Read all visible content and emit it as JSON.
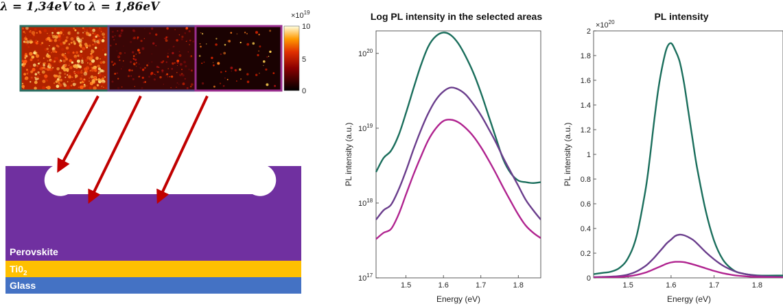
{
  "figure": {
    "heading_prefix": "λ = 1,34eV",
    "heading_mid": " to ",
    "heading_suffix": "λ = 1,86eV",
    "colorbar": {
      "exponent_label": "×10",
      "exponent_power": "19",
      "ticks": [
        "10",
        "5",
        "0"
      ],
      "range": [
        0,
        10
      ]
    },
    "maps": [
      {
        "region": "left",
        "border": "#2a6e62",
        "brightness": "high"
      },
      {
        "region": "middle",
        "border": "#5a4a8a",
        "brightness": "medium"
      },
      {
        "region": "right",
        "border": "#9a2f8f",
        "brightness": "low"
      }
    ],
    "layers": [
      {
        "label": "Perovskite",
        "color": "#7030a0"
      },
      {
        "label": "Ti0",
        "subscript": "2",
        "color": "#ffc000"
      },
      {
        "label": "Glass",
        "color": "#4472c4"
      }
    ],
    "arrow_color": "#c00000"
  },
  "chart_data": [
    {
      "type": "line",
      "title": "Log PL intensity in the selected areas",
      "xlabel": "Energy (eV)",
      "ylabel": "PL intensity (a.u.)",
      "yscale": "log",
      "xlim": [
        1.42,
        1.86
      ],
      "ylim": [
        1e+17,
        2e+20
      ],
      "xticks": [
        "1.5",
        "1.6",
        "1.7",
        "1.8"
      ],
      "yticks": [
        {
          "base": "10",
          "exp": "17",
          "value": 1e+17
        },
        {
          "base": "10",
          "exp": "18",
          "value": 1e+18
        },
        {
          "base": "10",
          "exp": "19",
          "value": 1e+19
        },
        {
          "base": "10",
          "exp": "20",
          "value": 1e+20
        }
      ],
      "x": [
        1.42,
        1.44,
        1.46,
        1.48,
        1.5,
        1.52,
        1.54,
        1.56,
        1.58,
        1.6,
        1.62,
        1.64,
        1.66,
        1.68,
        1.7,
        1.72,
        1.74,
        1.76,
        1.78,
        1.8,
        1.82,
        1.84,
        1.86
      ],
      "series": [
        {
          "color": "#1a6e5c",
          "values": [
            2.6e+18,
            4e+18,
            5e+18,
            8e+18,
            1.6e+19,
            3.4e+19,
            7e+19,
            1.25e+20,
            1.7e+20,
            1.9e+20,
            1.75e+20,
            1.35e+20,
            9e+19,
            5.5e+19,
            3e+19,
            1.5e+19,
            7.5e+18,
            3.8e+18,
            2.5e+18,
            2e+18,
            1.9e+18,
            1.85e+18,
            1.9e+18
          ]
        },
        {
          "color": "#6a3d8c",
          "values": [
            6e+17,
            8e+17,
            9.5e+17,
            1.5e+18,
            2.7e+18,
            5.2e+18,
            9.5e+18,
            1.6e+19,
            2.4e+19,
            3.1e+19,
            3.5e+19,
            3.3e+19,
            2.8e+19,
            2.1e+19,
            1.5e+19,
            1e+19,
            6.5e+18,
            4e+18,
            2.6e+18,
            1.7e+18,
            1.1e+18,
            8e+17,
            6e+17
          ]
        },
        {
          "color": "#b0238f",
          "values": [
            3.3e+17,
            4e+17,
            4.5e+17,
            7e+17,
            1.3e+18,
            2.4e+18,
            4.2e+18,
            7e+18,
            1e+19,
            1.25e+19,
            1.3e+19,
            1.2e+19,
            1e+19,
            7.8e+18,
            5.6e+18,
            3.8e+18,
            2.5e+18,
            1.6e+18,
            1.05e+18,
            7e+17,
            5e+17,
            4e+17,
            3.4e+17
          ]
        }
      ]
    },
    {
      "type": "line",
      "title": "PL intensity",
      "xlabel": "Energy (eV)",
      "ylabel": "PL intensity (a.u.)",
      "yscale": "linear",
      "y_multiplier": {
        "base": "×10",
        "exp": "20"
      },
      "xlim": [
        1.42,
        1.86
      ],
      "ylim": [
        0,
        2
      ],
      "xticks": [
        "1.5",
        "1.6",
        "1.7",
        "1.8"
      ],
      "yticks": [
        "0",
        "0.2",
        "0.4",
        "0.6",
        "0.8",
        "1",
        "1.2",
        "1.4",
        "1.6",
        "1.8",
        "2"
      ],
      "x": [
        1.42,
        1.44,
        1.46,
        1.48,
        1.5,
        1.52,
        1.54,
        1.55,
        1.56,
        1.57,
        1.58,
        1.59,
        1.6,
        1.61,
        1.62,
        1.63,
        1.64,
        1.65,
        1.66,
        1.68,
        1.7,
        1.72,
        1.74,
        1.76,
        1.8,
        1.86
      ],
      "series": [
        {
          "color": "#1a6e5c",
          "values": [
            0.03,
            0.04,
            0.05,
            0.08,
            0.16,
            0.34,
            0.7,
            0.95,
            1.25,
            1.52,
            1.72,
            1.86,
            1.9,
            1.84,
            1.75,
            1.58,
            1.35,
            1.12,
            0.9,
            0.55,
            0.3,
            0.15,
            0.075,
            0.04,
            0.02,
            0.019
          ]
        },
        {
          "color": "#6a3d8c",
          "values": [
            0.006,
            0.008,
            0.01,
            0.015,
            0.027,
            0.052,
            0.095,
            0.125,
            0.16,
            0.2,
            0.24,
            0.28,
            0.31,
            0.34,
            0.35,
            0.345,
            0.33,
            0.31,
            0.28,
            0.21,
            0.15,
            0.1,
            0.065,
            0.04,
            0.017,
            0.006
          ]
        },
        {
          "color": "#b0238f",
          "values": [
            0.003,
            0.004,
            0.005,
            0.007,
            0.013,
            0.024,
            0.042,
            0.055,
            0.07,
            0.085,
            0.1,
            0.115,
            0.125,
            0.13,
            0.13,
            0.127,
            0.12,
            0.11,
            0.1,
            0.078,
            0.056,
            0.038,
            0.025,
            0.016,
            0.007,
            0.0034
          ]
        }
      ]
    }
  ]
}
